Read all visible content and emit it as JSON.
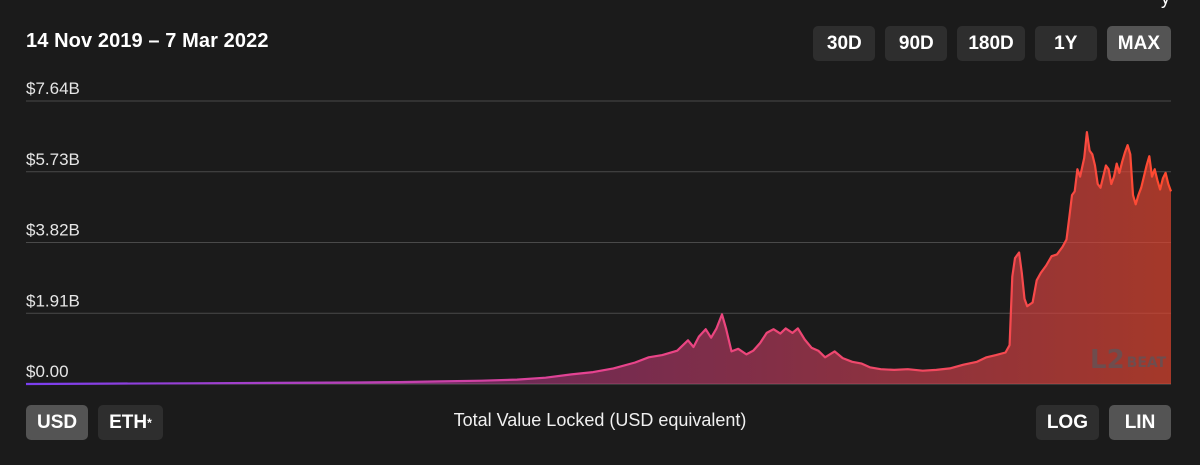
{
  "header": {
    "date_range": "14 Nov 2019 – 7 Mar 2022",
    "ranges": [
      {
        "label": "30D",
        "active": false
      },
      {
        "label": "90D",
        "active": false
      },
      {
        "label": "180D",
        "active": false
      },
      {
        "label": "1Y",
        "active": false
      },
      {
        "label": "MAX",
        "active": true
      }
    ]
  },
  "footer": {
    "currency_usd": "USD",
    "currency_eth": "ETH",
    "currency_eth_mark": "*",
    "caption": "Total Value Locked (USD equivalent)",
    "log_label": "LOG",
    "lin_label": "LIN",
    "active_currency": "USD",
    "active_scale": "LIN"
  },
  "watermark": "L2BEAT",
  "colors": {
    "background": "#1b1b1b",
    "button": "#2e2e2e",
    "button_active": "#545454",
    "gridline": "#4a4a4a",
    "line_start": "#7a3ff0",
    "line_mid": "#e8438f",
    "line_end": "#ff4a2e"
  },
  "chart_data": {
    "type": "area",
    "title": "",
    "xlabel": "Total Value Locked (USD equivalent)",
    "ylabel": "",
    "x_range": [
      "2019-11-14",
      "2022-03-07"
    ],
    "ylim": [
      0,
      7.64
    ],
    "y_unit": "billion USD",
    "y_ticks": [
      "$0.00",
      "$1.91B",
      "$3.82B",
      "$5.73B",
      "$7.64B"
    ],
    "y_tick_values": [
      0,
      1.91,
      3.82,
      5.73,
      7.64
    ],
    "grid": true,
    "scale": "linear",
    "series": [
      {
        "points": [
          [
            "2019-11-14",
            0.0
          ],
          [
            "2020-01-15",
            0.01
          ],
          [
            "2020-03-15",
            0.02
          ],
          [
            "2020-05-15",
            0.03
          ],
          [
            "2020-07-15",
            0.04
          ],
          [
            "2020-08-15",
            0.05
          ],
          [
            "2020-09-15",
            0.07
          ],
          [
            "2020-10-15",
            0.09
          ],
          [
            "2020-11-10",
            0.12
          ],
          [
            "2020-12-01",
            0.17
          ],
          [
            "2020-12-20",
            0.26
          ],
          [
            "2021-01-05",
            0.32
          ],
          [
            "2021-01-20",
            0.42
          ],
          [
            "2021-02-05",
            0.58
          ],
          [
            "2021-02-15",
            0.72
          ],
          [
            "2021-02-25",
            0.78
          ],
          [
            "2021-03-08",
            0.9
          ],
          [
            "2021-03-16",
            1.18
          ],
          [
            "2021-03-20",
            1.0
          ],
          [
            "2021-03-24",
            1.28
          ],
          [
            "2021-03-29",
            1.48
          ],
          [
            "2021-04-02",
            1.25
          ],
          [
            "2021-04-06",
            1.5
          ],
          [
            "2021-04-10",
            1.88
          ],
          [
            "2021-04-13",
            1.5
          ],
          [
            "2021-04-17",
            0.88
          ],
          [
            "2021-04-22",
            0.95
          ],
          [
            "2021-04-28",
            0.8
          ],
          [
            "2021-05-03",
            0.9
          ],
          [
            "2021-05-08",
            1.1
          ],
          [
            "2021-05-13",
            1.38
          ],
          [
            "2021-05-18",
            1.48
          ],
          [
            "2021-05-23",
            1.36
          ],
          [
            "2021-05-27",
            1.5
          ],
          [
            "2021-06-01",
            1.38
          ],
          [
            "2021-06-05",
            1.5
          ],
          [
            "2021-06-10",
            1.2
          ],
          [
            "2021-06-15",
            0.98
          ],
          [
            "2021-06-20",
            0.9
          ],
          [
            "2021-06-25",
            0.72
          ],
          [
            "2021-07-02",
            0.88
          ],
          [
            "2021-07-08",
            0.7
          ],
          [
            "2021-07-15",
            0.6
          ],
          [
            "2021-07-22",
            0.55
          ],
          [
            "2021-07-28",
            0.45
          ],
          [
            "2021-08-05",
            0.4
          ],
          [
            "2021-08-15",
            0.38
          ],
          [
            "2021-08-25",
            0.4
          ],
          [
            "2021-09-05",
            0.36
          ],
          [
            "2021-09-15",
            0.38
          ],
          [
            "2021-09-25",
            0.42
          ],
          [
            "2021-10-05",
            0.52
          ],
          [
            "2021-10-15",
            0.6
          ],
          [
            "2021-10-22",
            0.72
          ],
          [
            "2021-10-29",
            0.78
          ],
          [
            "2021-11-05",
            0.85
          ],
          [
            "2021-11-08",
            1.05
          ],
          [
            "2021-11-10",
            2.9
          ],
          [
            "2021-11-12",
            3.4
          ],
          [
            "2021-11-15",
            3.55
          ],
          [
            "2021-11-17",
            3.0
          ],
          [
            "2021-11-19",
            2.3
          ],
          [
            "2021-11-21",
            2.1
          ],
          [
            "2021-11-25",
            2.2
          ],
          [
            "2021-11-28",
            2.8
          ],
          [
            "2021-12-01",
            3.0
          ],
          [
            "2021-12-05",
            3.2
          ],
          [
            "2021-12-09",
            3.45
          ],
          [
            "2021-12-13",
            3.5
          ],
          [
            "2021-12-17",
            3.7
          ],
          [
            "2021-12-20",
            3.9
          ],
          [
            "2021-12-22",
            4.5
          ],
          [
            "2021-12-24",
            5.1
          ],
          [
            "2021-12-26",
            5.2
          ],
          [
            "2021-12-28",
            5.8
          ],
          [
            "2021-12-30",
            5.6
          ],
          [
            "2022-01-02",
            6.1
          ],
          [
            "2022-01-04",
            6.8
          ],
          [
            "2022-01-06",
            6.3
          ],
          [
            "2022-01-08",
            6.2
          ],
          [
            "2022-01-10",
            5.9
          ],
          [
            "2022-01-12",
            5.4
          ],
          [
            "2022-01-14",
            5.3
          ],
          [
            "2022-01-16",
            5.6
          ],
          [
            "2022-01-18",
            5.9
          ],
          [
            "2022-01-20",
            5.8
          ],
          [
            "2022-01-22",
            5.4
          ],
          [
            "2022-01-24",
            5.6
          ],
          [
            "2022-01-26",
            5.95
          ],
          [
            "2022-01-28",
            5.7
          ],
          [
            "2022-01-30",
            6.0
          ],
          [
            "2022-02-01",
            6.25
          ],
          [
            "2022-02-03",
            6.45
          ],
          [
            "2022-02-05",
            6.2
          ],
          [
            "2022-02-07",
            5.1
          ],
          [
            "2022-02-09",
            4.85
          ],
          [
            "2022-02-11",
            5.1
          ],
          [
            "2022-02-13",
            5.3
          ],
          [
            "2022-02-15",
            5.6
          ],
          [
            "2022-02-17",
            5.9
          ],
          [
            "2022-02-19",
            6.15
          ],
          [
            "2022-02-21",
            5.6
          ],
          [
            "2022-02-23",
            5.8
          ],
          [
            "2022-02-25",
            5.5
          ],
          [
            "2022-02-27",
            5.25
          ],
          [
            "2022-03-01",
            5.55
          ],
          [
            "2022-03-03",
            5.7
          ],
          [
            "2022-03-05",
            5.4
          ],
          [
            "2022-03-07",
            5.2
          ]
        ]
      }
    ]
  }
}
